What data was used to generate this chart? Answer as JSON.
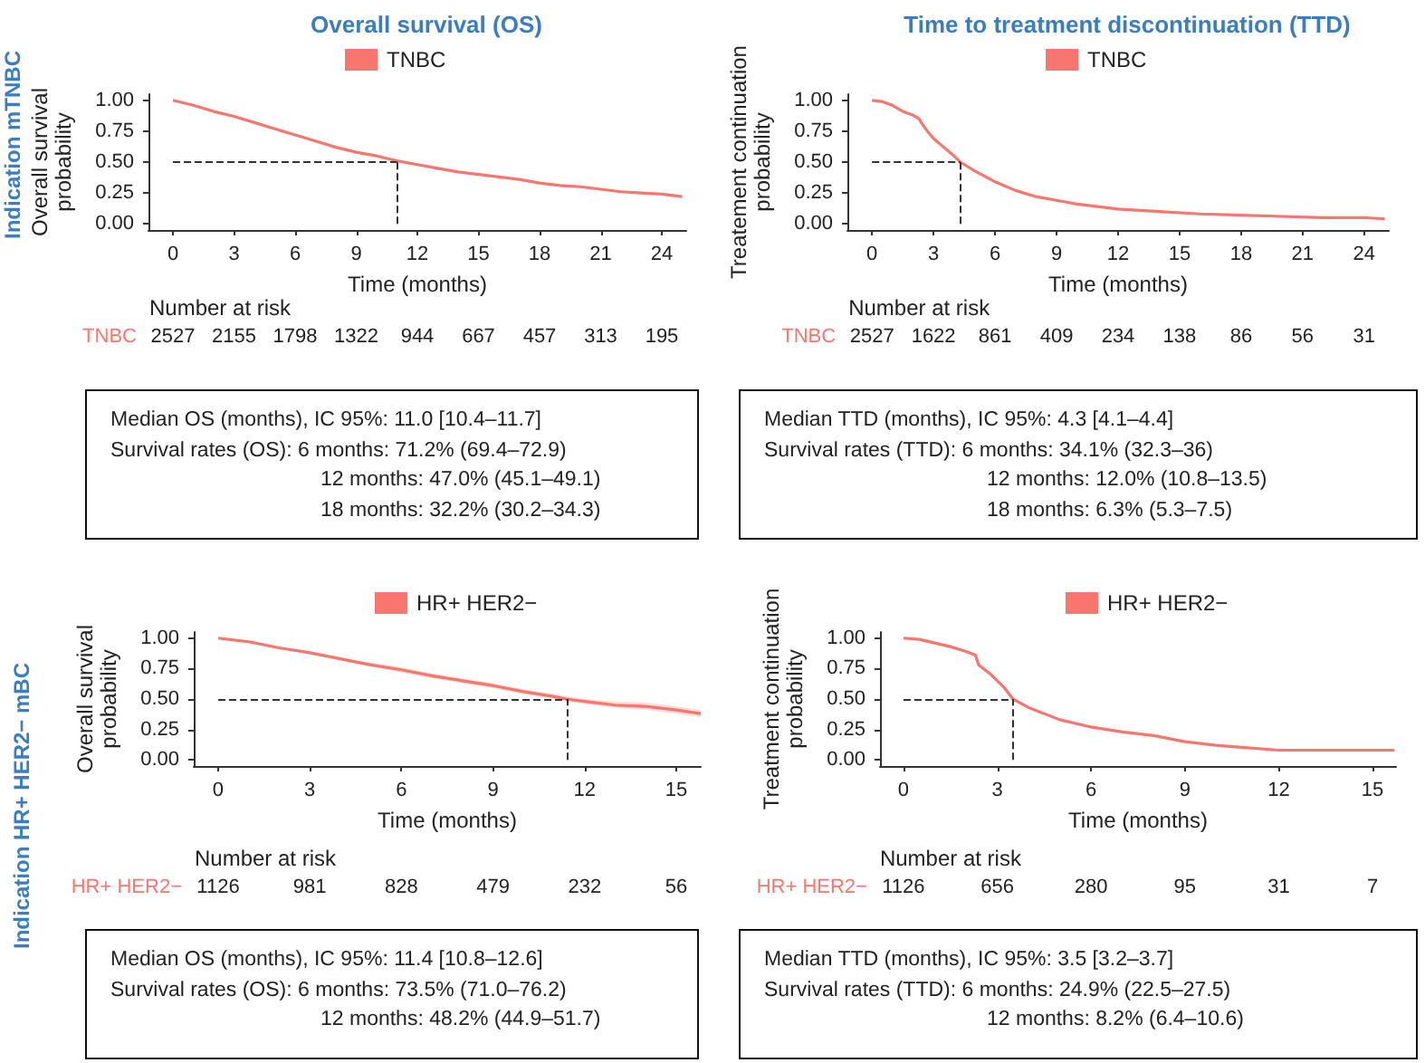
{
  "chart_data": [
    {
      "type": "line",
      "title": "Overall survival (OS)",
      "subtitle": "Indication mTNBC",
      "xlabel": "Time (months)",
      "ylabel": "Overall survival probability",
      "legend": "top",
      "x": [
        0,
        1,
        2,
        3,
        4,
        5,
        6,
        7,
        8,
        9,
        10,
        11,
        12,
        13,
        14,
        15,
        16,
        17,
        18,
        19,
        20,
        21,
        22,
        23,
        24,
        25
      ],
      "series": [
        {
          "name": "TNBC",
          "color": "#f8766d",
          "values": [
            1.0,
            0.96,
            0.91,
            0.87,
            0.82,
            0.77,
            0.72,
            0.67,
            0.62,
            0.58,
            0.55,
            0.51,
            0.48,
            0.45,
            0.42,
            0.4,
            0.38,
            0.36,
            0.33,
            0.31,
            0.3,
            0.28,
            0.26,
            0.25,
            0.24,
            0.22
          ]
        }
      ],
      "xlim": [
        -1.2,
        25.2
      ],
      "xticks": [
        0,
        3,
        6,
        9,
        12,
        15,
        18,
        21,
        24
      ],
      "ylim": [
        -0.05,
        1.05
      ],
      "yticks": [
        {
          "value": 0,
          "label": "0.00"
        },
        {
          "value": 0.25,
          "label": "0.25"
        },
        {
          "value": 0.5,
          "label": "0.50"
        },
        {
          "value": 0.75,
          "label": "0.75"
        },
        {
          "value": 1,
          "label": "1.00"
        }
      ],
      "ref_lines": [
        {
          "axis": "y",
          "value": 0.5,
          "color": "#333333",
          "line_style": "dashed"
        },
        {
          "axis": "x",
          "value": 11.0,
          "color": "#333333",
          "line_style": "dashed"
        }
      ],
      "annotations": [
        "Number at risk",
        "TNBC",
        "2527",
        "2155",
        "1798",
        "1322",
        "944",
        "667",
        "457",
        "313",
        "195",
        "Median OS (months), IC 95%: 11.0 [10.4–11.7]",
        "Survival rates (OS): 6 months: 71.2% (69.4–72.9)",
        "12 months: 47.0% (45.1–49.1)",
        "18 months: 32.2% (30.2–34.3)"
      ]
    },
    {
      "type": "line",
      "title": "Time to treatment discontinuation (TTD)",
      "xlabel": "Time (months)",
      "ylabel": "Treatement continuation probability",
      "legend": "top",
      "x": [
        0,
        0.5,
        1,
        1.5,
        2,
        2.3,
        2.4,
        2.7,
        3,
        3.5,
        4,
        4.3,
        5,
        6,
        7,
        8,
        9,
        10,
        11,
        12,
        14,
        16,
        18,
        20,
        22,
        24,
        25
      ],
      "series": [
        {
          "name": "TNBC",
          "color": "#f8766d",
          "values": [
            1.0,
            0.99,
            0.96,
            0.91,
            0.88,
            0.85,
            0.82,
            0.75,
            0.69,
            0.62,
            0.55,
            0.5,
            0.43,
            0.34,
            0.27,
            0.22,
            0.19,
            0.16,
            0.14,
            0.12,
            0.1,
            0.08,
            0.07,
            0.06,
            0.05,
            0.05,
            0.04
          ]
        }
      ],
      "xlim": [
        -1.2,
        25.2
      ],
      "xticks": [
        0,
        3,
        6,
        9,
        12,
        15,
        18,
        21,
        24
      ],
      "ylim": [
        -0.05,
        1.05
      ],
      "yticks": [
        {
          "value": 0,
          "label": "0.00"
        },
        {
          "value": 0.25,
          "label": "0.25"
        },
        {
          "value": 0.5,
          "label": "0.50"
        },
        {
          "value": 0.75,
          "label": "0.75"
        },
        {
          "value": 1,
          "label": "1.00"
        }
      ],
      "ref_lines": [
        {
          "axis": "y",
          "value": 0.5,
          "color": "#333333",
          "line_style": "dashed"
        },
        {
          "axis": "x",
          "value": 4.3,
          "color": "#333333",
          "line_style": "dashed"
        }
      ],
      "annotations": [
        "Number at risk",
        "TNBC",
        "2527",
        "1622",
        "861",
        "409",
        "234",
        "138",
        "86",
        "56",
        "31",
        "Median TTD (months), IC 95%: 4.3 [4.1–4.4]",
        "Survival rates (TTD): 6 months: 34.1% (32.3–36)",
        "12 months: 12.0% (10.8–13.5)",
        "18 months: 6.3% (5.3–7.5)"
      ]
    },
    {
      "type": "line",
      "subtitle": "Indication HR+ HER2− mBC",
      "xlabel": "Time (months)",
      "ylabel": "Overall survival probability",
      "legend": "top",
      "x": [
        0,
        1,
        2,
        3,
        4,
        5,
        6,
        7,
        8,
        9,
        10,
        11,
        11.4,
        12,
        13,
        14,
        15,
        15.8
      ],
      "series": [
        {
          "name": "HR+ HER2−",
          "color": "#f8766d",
          "values": [
            1.0,
            0.97,
            0.92,
            0.88,
            0.83,
            0.78,
            0.74,
            0.69,
            0.65,
            0.61,
            0.56,
            0.52,
            0.5,
            0.48,
            0.45,
            0.44,
            0.41,
            0.38
          ],
          "lower": [
            1.0,
            0.96,
            0.91,
            0.87,
            0.82,
            0.77,
            0.72,
            0.67,
            0.63,
            0.59,
            0.54,
            0.5,
            0.48,
            0.46,
            0.43,
            0.41,
            0.38,
            0.35
          ],
          "upper": [
            1.0,
            0.98,
            0.93,
            0.89,
            0.84,
            0.8,
            0.76,
            0.71,
            0.67,
            0.63,
            0.58,
            0.54,
            0.52,
            0.5,
            0.48,
            0.47,
            0.44,
            0.41
          ]
        }
      ],
      "xlim": [
        -0.8,
        15.8
      ],
      "xticks": [
        0,
        3,
        6,
        9,
        12,
        15
      ],
      "ylim": [
        -0.05,
        1.05
      ],
      "yticks": [
        {
          "value": 0,
          "label": "0.00"
        },
        {
          "value": 0.25,
          "label": "0.25"
        },
        {
          "value": 0.5,
          "label": "0.50"
        },
        {
          "value": 0.75,
          "label": "0.75"
        },
        {
          "value": 1,
          "label": "1.00"
        }
      ],
      "ref_lines": [
        {
          "axis": "y",
          "value": 0.5,
          "color": "#333333",
          "line_style": "dashed"
        },
        {
          "axis": "x",
          "value": 11.4,
          "color": "#333333",
          "line_style": "dashed"
        }
      ],
      "annotations": [
        "Number at risk",
        "HR+ HER2−",
        "1126",
        "981",
        "828",
        "479",
        "232",
        "56",
        "Median OS (months), IC 95%: 11.4 [10.8–12.6]",
        "Survival rates (OS): 6 months: 73.5% (71.0–76.2)",
        "12 months: 48.2% (44.9–51.7)"
      ]
    },
    {
      "type": "line",
      "xlabel": "Time (months)",
      "ylabel": "Treatment continuation probability",
      "legend": "top",
      "x": [
        0,
        0.5,
        1,
        1.5,
        2,
        2.3,
        2.4,
        2.8,
        3.2,
        3.5,
        4,
        5,
        6,
        7,
        8,
        9,
        10,
        11,
        12,
        13,
        14,
        15,
        15.7
      ],
      "series": [
        {
          "name": "HR+ HER2−",
          "color": "#f8766d",
          "values": [
            1.0,
            0.99,
            0.96,
            0.93,
            0.89,
            0.86,
            0.78,
            0.7,
            0.6,
            0.5,
            0.43,
            0.33,
            0.27,
            0.23,
            0.2,
            0.15,
            0.12,
            0.1,
            0.08,
            0.08,
            0.08,
            0.08,
            0.08
          ]
        }
      ],
      "xlim": [
        -0.75,
        15.75
      ],
      "xticks": [
        0,
        3,
        6,
        9,
        12,
        15
      ],
      "ylim": [
        -0.05,
        1.05
      ],
      "yticks": [
        {
          "value": 0,
          "label": "0.00"
        },
        {
          "value": 0.25,
          "label": "0.25"
        },
        {
          "value": 0.5,
          "label": "0.50"
        },
        {
          "value": 0.75,
          "label": "0.75"
        },
        {
          "value": 1,
          "label": "1.00"
        }
      ],
      "ref_lines": [
        {
          "axis": "y",
          "value": 0.5,
          "color": "#333333",
          "line_style": "dashed"
        },
        {
          "axis": "x",
          "value": 3.5,
          "color": "#333333",
          "line_style": "dashed"
        }
      ],
      "annotations": [
        "Number at risk",
        "HR+ HER2−",
        "1126",
        "656",
        "280",
        "95",
        "31",
        "7",
        "Median TTD (months), IC 95%: 3.5 [3.2–3.7]",
        "Survival rates (TTD): 6 months: 24.9% (22.5–27.5)",
        "12 months: 8.2% (6.4–10.6)"
      ]
    }
  ]
}
